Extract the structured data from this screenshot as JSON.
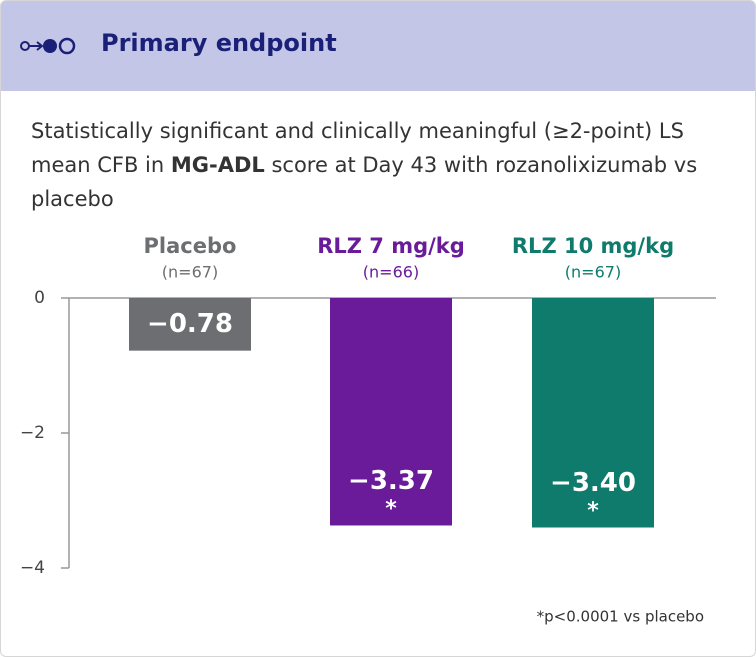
{
  "chart_data": {
    "type": "bar",
    "title": "Primary endpoint",
    "subtitle_parts": [
      "Statistically significant and clinically meaningful (≥2-point) LS mean CFB in ",
      "MG-ADL",
      " score at Day 43 with rozanolixizumab vs placebo"
    ],
    "categories": [
      "Placebo",
      "RLZ 7 mg/kg",
      "RLZ 10 mg/kg"
    ],
    "n_labels": [
      "(n=67)",
      "(n=66)",
      "(n=67)"
    ],
    "values": [
      -0.78,
      -3.37,
      -3.4
    ],
    "value_labels": [
      "−0.78",
      "−3.37",
      "−3.40"
    ],
    "significance": [
      null,
      "*",
      "*"
    ],
    "colors": [
      "#6d6e71",
      "#6a1b9a",
      "#0f7b6c"
    ],
    "ylim": [
      -4,
      0
    ],
    "yticks": [
      {
        "value": 0,
        "label": "0"
      },
      {
        "value": -2,
        "label": "−2"
      },
      {
        "value": -4,
        "label": "−4"
      }
    ],
    "footnote": "*p<0.0001 vs placebo"
  }
}
